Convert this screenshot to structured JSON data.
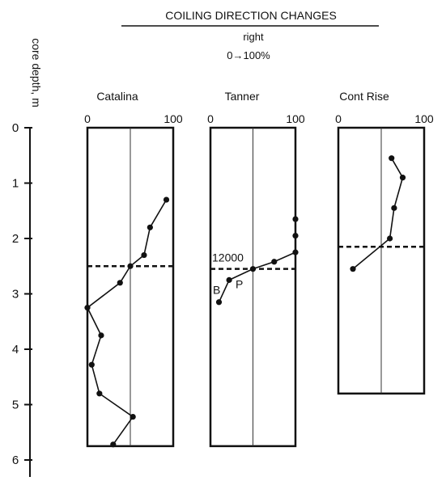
{
  "chart_data": {
    "type": "line",
    "title": "COILING DIRECTION CHANGES",
    "subtitle_line1": "right",
    "subtitle_line2": "0→100%",
    "ylabel": "core depth, m",
    "ylim": [
      0,
      6
    ],
    "y_ticks": [
      "0",
      "1",
      "2",
      "3",
      "4",
      "5",
      "6"
    ],
    "panels": [
      {
        "name": "Catalina",
        "x_ticks": [
          "0",
          "100"
        ],
        "xlim": [
          0,
          100
        ],
        "depth_bottom": 5.75,
        "boundary_depth": 2.5,
        "points": [
          {
            "x": 92,
            "y": 1.3
          },
          {
            "x": 73,
            "y": 1.8
          },
          {
            "x": 66,
            "y": 2.3
          },
          {
            "x": 50,
            "y": 2.5
          },
          {
            "x": 38,
            "y": 2.8
          },
          {
            "x": 0,
            "y": 3.25
          },
          {
            "x": 16,
            "y": 3.75
          },
          {
            "x": 5,
            "y": 4.28
          },
          {
            "x": 14,
            "y": 4.8
          },
          {
            "x": 53,
            "y": 5.22
          },
          {
            "x": 30,
            "y": 5.72
          }
        ]
      },
      {
        "name": "Tanner",
        "x_ticks": [
          "0",
          "100"
        ],
        "xlim": [
          0,
          100
        ],
        "depth_bottom": 5.75,
        "boundary_depth": 2.55,
        "annotation_label": "12000",
        "marker_labels": [
          "B",
          "P"
        ],
        "points": [
          {
            "x": 100,
            "y": 1.65
          },
          {
            "x": 100,
            "y": 1.95
          },
          {
            "x": 100,
            "y": 2.25
          },
          {
            "x": 75,
            "y": 2.42
          },
          {
            "x": 50,
            "y": 2.55
          },
          {
            "x": 22,
            "y": 2.75
          },
          {
            "x": 10,
            "y": 3.15
          }
        ]
      },
      {
        "name": "Cont Rise",
        "x_ticks": [
          "0",
          "100"
        ],
        "xlim": [
          0,
          100
        ],
        "depth_bottom": 4.8,
        "boundary_depth": 2.15,
        "points": [
          {
            "x": 62,
            "y": 0.55
          },
          {
            "x": 75,
            "y": 0.9
          },
          {
            "x": 65,
            "y": 1.45
          },
          {
            "x": 60,
            "y": 2.0
          },
          {
            "x": 17,
            "y": 2.55
          }
        ]
      }
    ]
  }
}
